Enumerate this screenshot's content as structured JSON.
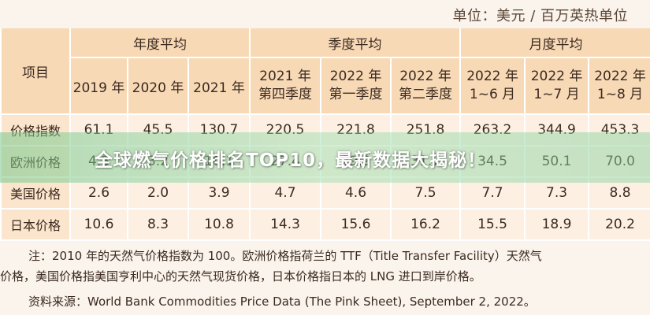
{
  "unit": "单位：美元 / 百万英热单位",
  "table": {
    "item_header": "项目",
    "groups": [
      "年度平均",
      "季度平均",
      "月度平均"
    ],
    "columns": [
      "2019 年",
      "2020 年",
      "2021 年",
      [
        "2021 年",
        "第四季度"
      ],
      [
        "2022 年",
        "第一季度"
      ],
      [
        "2022 年",
        "第二季度"
      ],
      [
        "2022 年",
        "1~6 月"
      ],
      [
        "2022 年",
        "1~7 月"
      ],
      [
        "2022 年",
        "1~8 月"
      ]
    ],
    "rows": [
      {
        "label": "价格指数",
        "values": [
          "61.1",
          "45.5",
          "130.7",
          "220.5",
          "221.8",
          "251.8",
          "263.2",
          "344.9",
          "453.3"
        ]
      },
      {
        "label": "欧洲价格",
        "values": [
          "4.8",
          "3.2",
          "16.1",
          "27.4",
          "29.9",
          "31.7",
          "34.5",
          "50.1",
          "70.0"
        ]
      },
      {
        "label": "美国价格",
        "values": [
          "2.6",
          "2.0",
          "3.9",
          "4.7",
          "4.6",
          "7.5",
          "7.7",
          "7.3",
          "8.8"
        ]
      },
      {
        "label": "日本价格",
        "values": [
          "10.6",
          "8.3",
          "10.8",
          "14.3",
          "15.6",
          "16.2",
          "15.5",
          "18.9",
          "20.2"
        ]
      }
    ]
  },
  "banner": "全球燃气价格排名TOP10，最新数据大揭秘！",
  "note_line1": "注：2010 年的天然气价格指数为 100。欧洲价格指荷兰的 TTF（Title Transfer Facility）天然气",
  "note_line2": "价格，美国价格指美国亨利中心的天然气现货价格，日本价格指日本的 LNG 进口到岸价格。",
  "source": "资料来源：World Bank Commodities Price Data (The Pink Sheet), September 2, 2022。",
  "colors": {
    "header": "#f8d9b6",
    "cell": "#fdf0e3",
    "banner": "#8fd0a0"
  }
}
